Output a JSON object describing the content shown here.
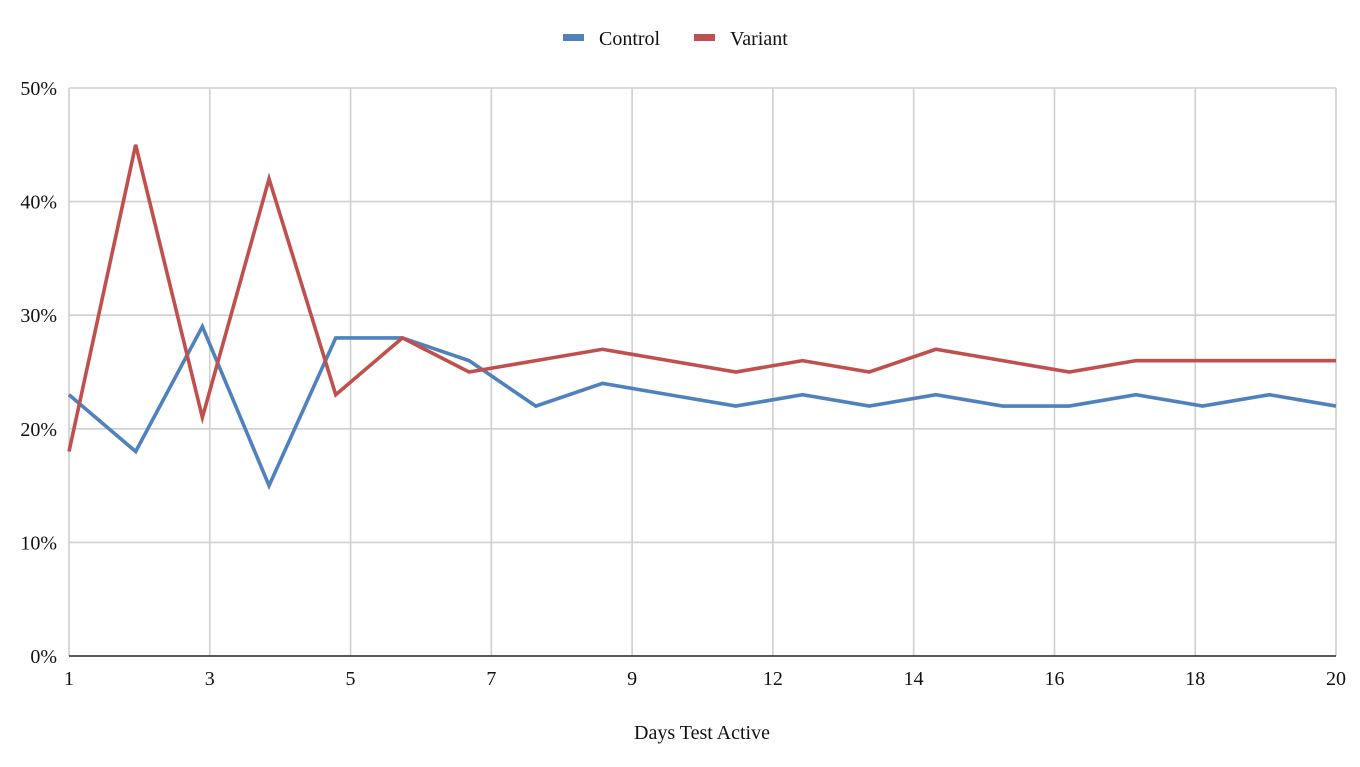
{
  "chart_data": {
    "type": "line",
    "title": "",
    "xlabel": "Days Test Active",
    "ylabel": "",
    "x_tick_labels": [
      "1",
      "3",
      "5",
      "7",
      "9",
      "12",
      "14",
      "16",
      "18",
      "20"
    ],
    "y_tick_labels": [
      "0%",
      "10%",
      "20%",
      "30%",
      "40%",
      "50%"
    ],
    "ylim": [
      0,
      50
    ],
    "y_unit": "%",
    "grid": true,
    "legend_position": "top-center",
    "x": [
      1,
      2,
      3,
      4,
      5,
      6,
      7,
      8,
      9,
      10,
      11,
      12,
      13,
      14,
      15,
      16,
      17,
      18,
      19,
      20
    ],
    "series": [
      {
        "name": "Control",
        "color": "#4f81bd",
        "values": [
          23,
          18,
          29,
          15,
          28,
          28,
          26,
          22,
          24,
          23,
          22,
          23,
          22,
          23,
          22,
          22,
          23,
          22,
          23,
          22
        ]
      },
      {
        "name": "Variant",
        "color": "#c0504d",
        "values": [
          18,
          45,
          21,
          42,
          23,
          28,
          25,
          26,
          27,
          26,
          25,
          26,
          25,
          27,
          26,
          25,
          26,
          26,
          26,
          26
        ]
      }
    ]
  }
}
